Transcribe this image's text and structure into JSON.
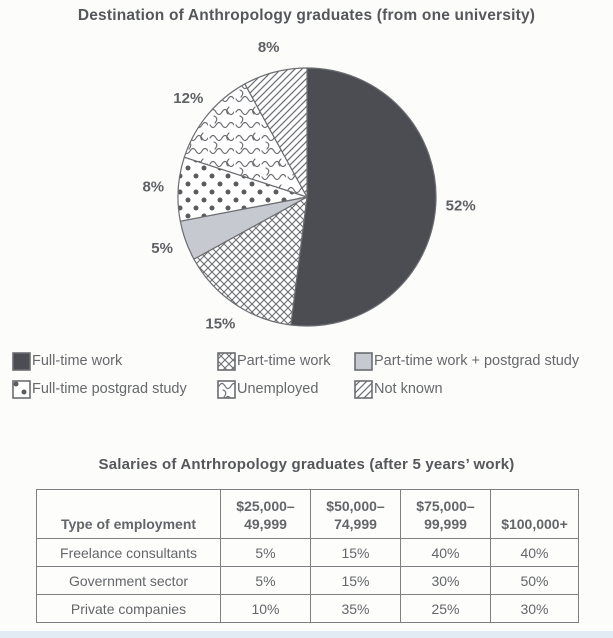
{
  "page": {
    "pie_title": "Destination of Anthropology graduates (from one university)",
    "table_title": "Salaries of Antrhropology graduates (after 5 years’ work)"
  },
  "pie": {
    "unit": "%",
    "slices": [
      {
        "label": "Full-time work",
        "value": 52,
        "pattern": "solid-dark",
        "swatch": "solid-dark-swatch"
      },
      {
        "label": "Part-time work",
        "value": 15,
        "pattern": "crosshatch",
        "swatch": "crosshatch-swatch"
      },
      {
        "label": "Part-time work + postgrad study",
        "value": 5,
        "pattern": "solid-light",
        "swatch": "solid-light-swatch"
      },
      {
        "label": "Full-time postgrad study",
        "value": 8,
        "pattern": "dots",
        "swatch": "dots-swatch"
      },
      {
        "label": "Unemployed",
        "value": 12,
        "pattern": "squiggle",
        "swatch": "squiggle-swatch"
      },
      {
        "label": "Not known",
        "value": 8,
        "pattern": "diagonal",
        "swatch": "diagonal-swatch"
      }
    ]
  },
  "table": {
    "header_col0": "Type of employment",
    "salary_bands": [
      [
        "$25,000–",
        "49,999"
      ],
      [
        "$50,000–",
        "74,999"
      ],
      [
        "$75,000–",
        "99,999"
      ],
      [
        "$100,000+"
      ]
    ],
    "rows": [
      {
        "label": "Freelance consultants",
        "cells": [
          "5%",
          "15%",
          "40%",
          "40%"
        ]
      },
      {
        "label": "Government sector",
        "cells": [
          "5%",
          "15%",
          "30%",
          "50%"
        ]
      },
      {
        "label": "Private companies",
        "cells": [
          "10%",
          "35%",
          "25%",
          "30%"
        ]
      }
    ]
  },
  "colors": {
    "slice_dark": "#4b4d52",
    "slice_light_gray": "#c7c9d0",
    "pattern_stroke": "#6b6d71",
    "slice_outline": "#6b6d71",
    "text_gray": "#5f6165",
    "title_gray": "#55575b",
    "table_border": "#7e8084",
    "bottom_strip": "#e2ebf4"
  },
  "chart_data": [
    {
      "type": "pie",
      "title": "Destination of Anthropology graduates (from one university)",
      "labels": [
        "Full-time work",
        "Part-time work",
        "Part-time work + postgrad study",
        "Full-time postgrad study",
        "Unemployed",
        "Not known"
      ],
      "values": [
        52,
        15,
        5,
        8,
        12,
        8
      ],
      "unit": "%",
      "direction": "clockwise",
      "start_angle": "12 o'clock",
      "legend_position": "below",
      "fill_styles": [
        "solid dark gray",
        "diagonal crosshatch",
        "solid light gray",
        "polka dots",
        "squiggle scribble",
        "diagonal lines"
      ]
    },
    {
      "type": "table",
      "title": "Salaries of Antrhropology graduates (after 5 years’ work)",
      "columns": [
        "Type of employment",
        "$25,000–49,999",
        "$50,000–74,999",
        "$75,000–99,999",
        "$100,000+"
      ],
      "rows": [
        [
          "Freelance consultants",
          "5%",
          "15%",
          "40%",
          "40%"
        ],
        [
          "Government sector",
          "5%",
          "15%",
          "30%",
          "50%"
        ],
        [
          "Private companies",
          "10%",
          "35%",
          "25%",
          "30%"
        ]
      ]
    }
  ]
}
